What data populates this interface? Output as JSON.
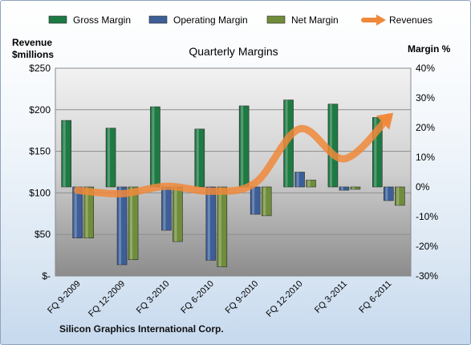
{
  "chart_data": {
    "type": "bar",
    "title": "Quarterly Margins",
    "left_axis_label_line1": "Revenue",
    "left_axis_label_line2": "$millions",
    "right_axis_label": "Margin %",
    "categories": [
      "FQ 9-2009",
      "FQ 12-2009",
      "FQ 3-2010",
      "FQ 6-2010",
      "FQ 9-2010",
      "FQ 12-2010",
      "FQ 3-2011",
      "FQ 6-2011"
    ],
    "left_ylim": [
      0,
      250
    ],
    "left_ticks": [
      0,
      50,
      100,
      150,
      200,
      250
    ],
    "left_tick_labels": [
      "$-",
      "$50",
      "$100",
      "$150",
      "$200",
      "$250"
    ],
    "right_ylim": [
      -30,
      40
    ],
    "right_ticks": [
      -30,
      -20,
      -10,
      0,
      10,
      20,
      30,
      40
    ],
    "right_tick_labels": [
      "-30%",
      "-20%",
      "-10%",
      "0%",
      "10%",
      "20%",
      "30%",
      "40%"
    ],
    "series": [
      {
        "name": "Gross Margin",
        "axis": "right",
        "kind": "bar",
        "color": "#1e7a43",
        "values": [
          22.4,
          19.8,
          27.0,
          19.5,
          27.3,
          29.3,
          27.9,
          23.4
        ]
      },
      {
        "name": "Operating Margin",
        "axis": "right",
        "kind": "bar",
        "color": "#3d5f98",
        "values": [
          -17.2,
          -26.2,
          -14.6,
          -24.7,
          -9.2,
          5.0,
          -1.1,
          -4.6
        ]
      },
      {
        "name": "Net Margin",
        "axis": "right",
        "kind": "bar",
        "color": "#6f8d3b",
        "values": [
          -17.2,
          -24.5,
          -18.4,
          -26.9,
          -9.7,
          2.3,
          -0.8,
          -6.2
        ]
      },
      {
        "name": "Revenues",
        "axis": "left",
        "kind": "line",
        "color": "#f0883a",
        "values": [
          103,
          99,
          108,
          102,
          112,
          177,
          141,
          191
        ]
      }
    ],
    "grid": true,
    "legend": "top"
  },
  "footer": "Silicon Graphics International Corp."
}
